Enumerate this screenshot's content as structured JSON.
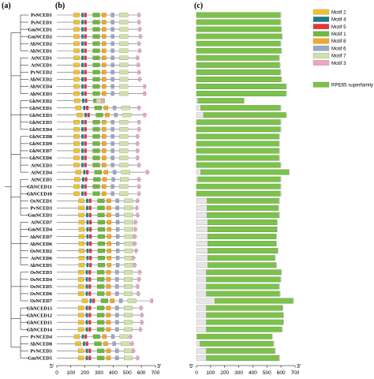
{
  "panels": {
    "a": "(a)",
    "b": "(b)",
    "c": "(c)"
  },
  "genes": [
    "PsNCED1",
    "PsNCED1",
    "GmNCED1",
    "GmNCED2",
    "AhNCED2",
    "AhNCED1",
    "AtNCED1",
    "AtNCED1",
    "PvNCED2",
    "AhNCED2",
    "AhNCED4",
    "AhNCED3",
    "GhNCED2",
    "GhNCED1",
    "GhNCED3",
    "GhNCED5",
    "GhNCED4",
    "GhNCED8",
    "GhNCED9",
    "GhNCED7",
    "GhNCED6",
    "AtNCED3",
    "AtNCED4",
    "AtNCED5",
    "GhNCED11",
    "GhNCED10",
    "OsNCED1",
    "PvNCED3",
    "GmNCED3",
    "AtNCED7",
    "GmNCED4",
    "AhNCED7",
    "AhNCED6",
    "OsNCED2",
    "AtNCED6",
    "AhNCED5",
    "OsNCED3",
    "OsNCED4",
    "OsNCED5",
    "OsNCED6",
    "OsNCED7",
    "GhNCED13",
    "GhNCED12",
    "GhNCED15",
    "GhNCED14",
    "PvNCED4",
    "AhNCED8",
    "PvNCED5",
    "GmNCED5"
  ],
  "axis_b": {
    "ticks": [
      "0",
      "100",
      "200",
      "300",
      "400",
      "500",
      "600",
      "700"
    ],
    "start": "5'",
    "end": "3'"
  },
  "axis_c": {
    "ticks": [
      "0",
      "100",
      "200",
      "300",
      "400",
      "500",
      "600",
      "700"
    ],
    "start": "5'",
    "end": "3'"
  },
  "legend": {
    "motifs": [
      {
        "label": "Motif 2",
        "color": "#f2c12e"
      },
      {
        "label": "Motif 4",
        "color": "#1f7a8c"
      },
      {
        "label": "Motif 5",
        "color": "#e8343b"
      },
      {
        "label": "Motif 1",
        "color": "#6fb83a"
      },
      {
        "label": "Motif 8",
        "color": "#f5a623"
      },
      {
        "label": "Motif 6",
        "color": "#9aa7c8"
      },
      {
        "label": "Motif 7",
        "color": "#cfe3a6"
      },
      {
        "label": "Motif 3",
        "color": "#f2a3c4"
      }
    ],
    "domain": {
      "label": "RPE65 superfamily",
      "color": "#7dc24b"
    }
  },
  "chart_data": {
    "type": "table",
    "axis_range": [
      0,
      700
    ],
    "protein_lengths": [
      600,
      600,
      605,
      610,
      600,
      605,
      590,
      595,
      600,
      605,
      640,
      640,
      340,
      600,
      640,
      600,
      600,
      590,
      590,
      590,
      590,
      600,
      660,
      600,
      600,
      600,
      590,
      585,
      590,
      575,
      575,
      570,
      570,
      580,
      560,
      570,
      605,
      600,
      590,
      595,
      690,
      615,
      620,
      620,
      610,
      540,
      550,
      560,
      590
    ],
    "superfamily_start": [
      0,
      0,
      0,
      0,
      0,
      0,
      0,
      0,
      0,
      0,
      0,
      0,
      10,
      30,
      50,
      0,
      0,
      0,
      0,
      0,
      0,
      0,
      30,
      10,
      0,
      0,
      75,
      75,
      75,
      80,
      80,
      80,
      80,
      80,
      80,
      80,
      70,
      70,
      70,
      70,
      130,
      70,
      70,
      70,
      70,
      5,
      25,
      70,
      70
    ]
  }
}
